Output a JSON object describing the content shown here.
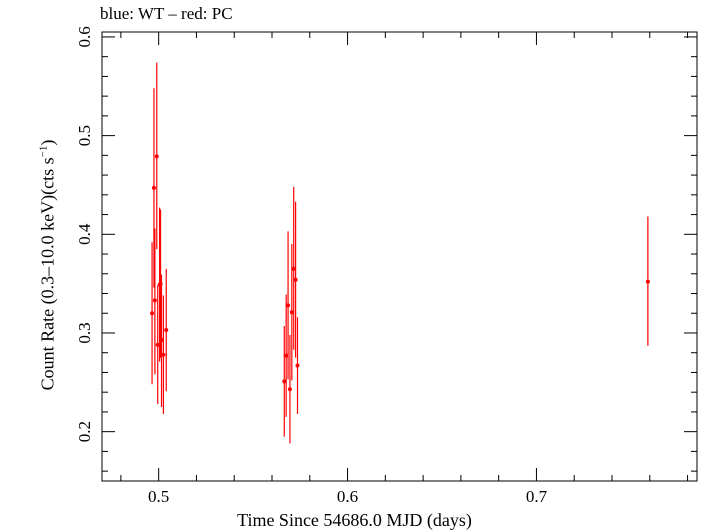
{
  "chart_data": {
    "type": "scatter",
    "title": "blue: WT – red: PC",
    "xlabel": "Time Since 54686.0 MJD (days)",
    "ylabel_main": "Count Rate (0.3–10.0 keV)(cts s",
    "ylabel_sup": "−1",
    "ylabel_tail": ")",
    "xlim": [
      0.47,
      0.785
    ],
    "ylim": [
      0.15,
      0.605
    ],
    "xticks": [
      0.5,
      0.6,
      0.7
    ],
    "xtick_labels": [
      "0.5",
      "0.6",
      "0.7"
    ],
    "yticks": [
      0.2,
      0.3,
      0.4,
      0.5,
      0.6
    ],
    "ytick_labels": [
      "0.2",
      "0.3",
      "0.4",
      "0.5",
      "0.6"
    ],
    "grid": false,
    "series": [
      {
        "color": "#ff0000",
        "points": [
          {
            "x": 0.4965,
            "y": 0.32,
            "ylo": 0.248,
            "yhi": 0.392
          },
          {
            "x": 0.4975,
            "y": 0.447,
            "ylo": 0.346,
            "yhi": 0.548
          },
          {
            "x": 0.498,
            "y": 0.333,
            "ylo": 0.258,
            "yhi": 0.406
          },
          {
            "x": 0.499,
            "y": 0.479,
            "ylo": 0.385,
            "yhi": 0.574
          },
          {
            "x": 0.4995,
            "y": 0.288,
            "ylo": 0.228,
            "yhi": 0.348
          },
          {
            "x": 0.5005,
            "y": 0.349,
            "ylo": 0.271,
            "yhi": 0.427
          },
          {
            "x": 0.501,
            "y": 0.35,
            "ylo": 0.275,
            "yhi": 0.425
          },
          {
            "x": 0.5015,
            "y": 0.293,
            "ylo": 0.225,
            "yhi": 0.359
          },
          {
            "x": 0.5025,
            "y": 0.278,
            "ylo": 0.218,
            "yhi": 0.338
          },
          {
            "x": 0.504,
            "y": 0.303,
            "ylo": 0.241,
            "yhi": 0.365
          },
          {
            "x": 0.5665,
            "y": 0.251,
            "ylo": 0.195,
            "yhi": 0.307
          },
          {
            "x": 0.5675,
            "y": 0.277,
            "ylo": 0.215,
            "yhi": 0.339
          },
          {
            "x": 0.5685,
            "y": 0.328,
            "ylo": 0.253,
            "yhi": 0.403
          },
          {
            "x": 0.5695,
            "y": 0.243,
            "ylo": 0.188,
            "yhi": 0.298
          },
          {
            "x": 0.5705,
            "y": 0.321,
            "ylo": 0.252,
            "yhi": 0.39
          },
          {
            "x": 0.5715,
            "y": 0.365,
            "ylo": 0.283,
            "yhi": 0.448
          },
          {
            "x": 0.5725,
            "y": 0.354,
            "ylo": 0.275,
            "yhi": 0.433
          },
          {
            "x": 0.5735,
            "y": 0.267,
            "ylo": 0.218,
            "yhi": 0.316
          },
          {
            "x": 0.759,
            "y": 0.352,
            "ylo": 0.287,
            "yhi": 0.418
          }
        ]
      }
    ]
  }
}
